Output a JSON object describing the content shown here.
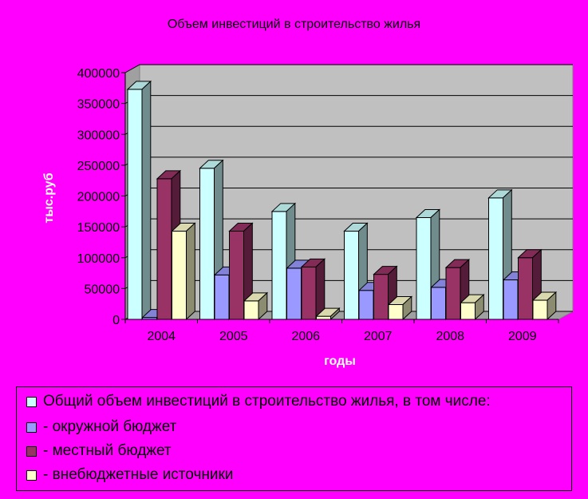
{
  "chart_data": {
    "type": "bar",
    "title": "Объем инвестиций в строительство жилья",
    "xlabel": "годы",
    "ylabel": "тыс.руб",
    "categories": [
      "2004",
      "2005",
      "2006",
      "2007",
      "2008",
      "2009"
    ],
    "ylim": [
      0,
      400000
    ],
    "yticks": [
      "0",
      "50000",
      "100000",
      "150000",
      "200000",
      "250000",
      "300000",
      "350000",
      "400000"
    ],
    "grid": true,
    "legend_position": "bottom",
    "series": [
      {
        "name": "Общий объем инвестиций в строительство жилья, в том числе:",
        "color": "#ccffff",
        "values": [
          373000,
          245000,
          175000,
          143000,
          165000,
          197000
        ]
      },
      {
        "name": "- окружной бюджет",
        "color": "#9999ff",
        "values": [
          3000,
          72000,
          83000,
          47000,
          52000,
          64000
        ]
      },
      {
        "name": "- местный бюджет",
        "color": "#993366",
        "values": [
          228000,
          143000,
          85000,
          73000,
          84000,
          100000
        ]
      },
      {
        "name": "- внебюджетные источники",
        "color": "#ffffcc",
        "values": [
          143000,
          30000,
          5000,
          24000,
          27000,
          31000
        ]
      }
    ]
  }
}
